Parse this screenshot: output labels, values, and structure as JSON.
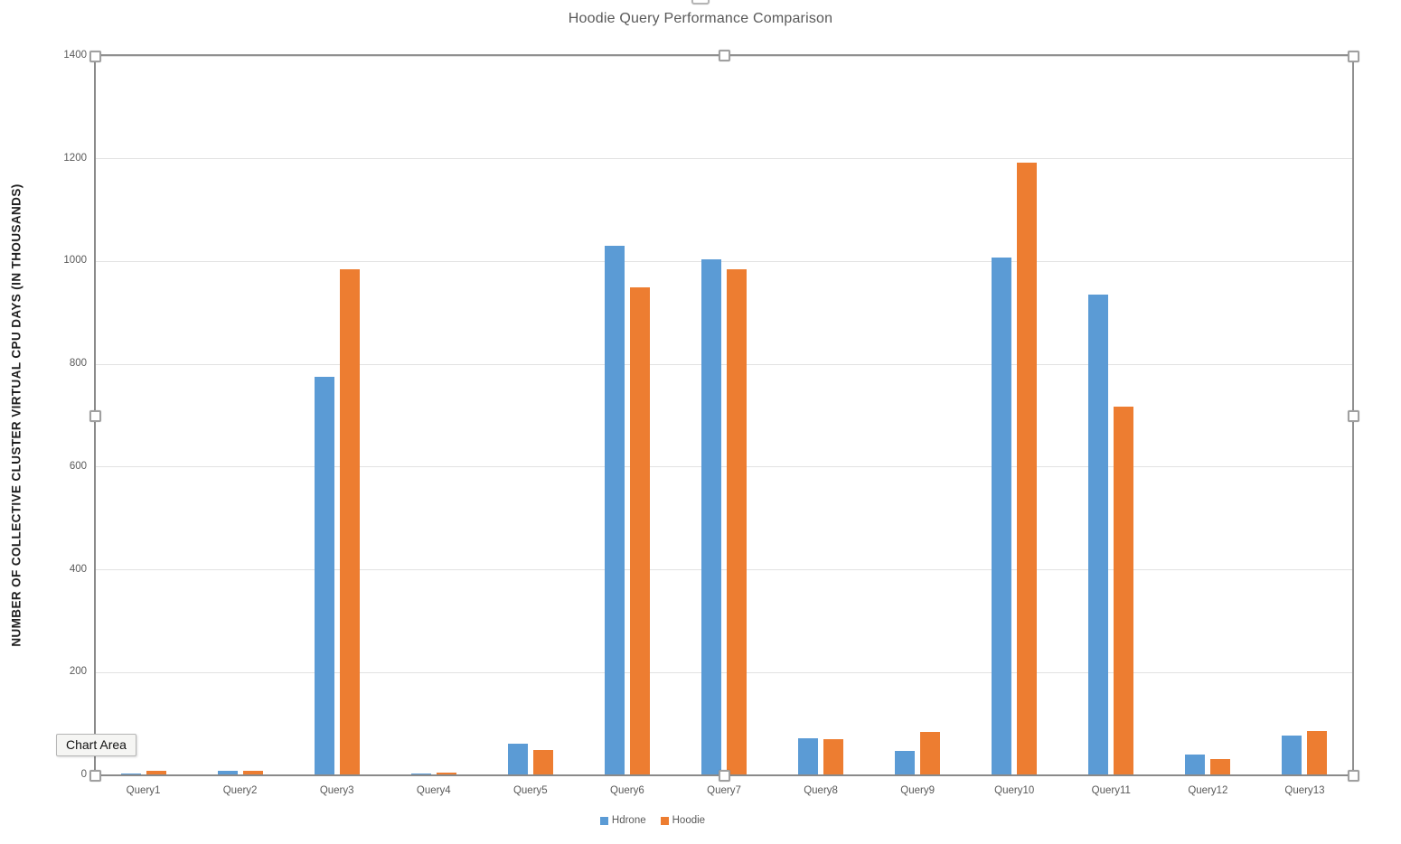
{
  "chart_data": {
    "type": "bar",
    "title": "Hoodie Query Performance Comparison",
    "xlabel": "",
    "ylabel": "NUMBER OF COLLECTIVE CLUSTER VIRTUAL CPU DAYS (IN THOUSANDS)",
    "categories": [
      "Query1",
      "Query2",
      "Query3",
      "Query4",
      "Query5",
      "Query6",
      "Query7",
      "Query8",
      "Query9",
      "Query10",
      "Query11",
      "Query12",
      "Query13"
    ],
    "series": [
      {
        "name": "Hdrone",
        "color": "#5B9BD5",
        "values": [
          4,
          9,
          775,
          4,
          62,
          1030,
          1005,
          72,
          48,
          1007,
          935,
          40,
          78
        ]
      },
      {
        "name": "Hoodie",
        "color": "#ED7D31",
        "values": [
          8,
          8,
          985,
          5,
          50,
          950,
          985,
          71,
          85,
          1193,
          718,
          32,
          87
        ]
      }
    ],
    "ylim": [
      0,
      1400
    ],
    "yticks": [
      0,
      200,
      400,
      600,
      800,
      1000,
      1200,
      1400
    ],
    "grid": true,
    "legend_position": "bottom"
  },
  "selection": {
    "state": "chart-selected",
    "tooltip_label": "Chart Area"
  },
  "colors": {
    "series_hdrone": "#5B9BD5",
    "series_hoodie": "#ED7D31",
    "gridline": "#E2E2E2",
    "axis_line": "#8A8A8A",
    "text": "#595959",
    "background": "#FFFFFF"
  }
}
